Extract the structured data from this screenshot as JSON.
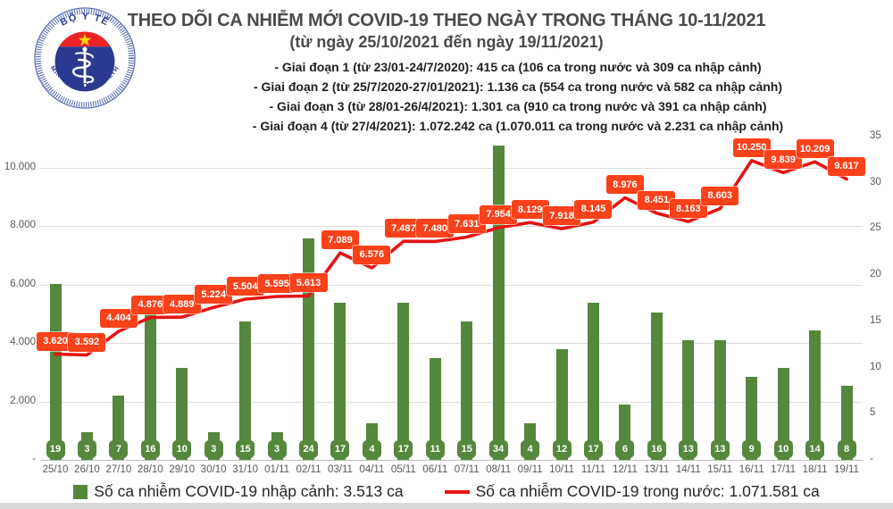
{
  "logo": {
    "top_text": "BỘ Y TẾ",
    "bottom_text": "MINISTRY OF HEALTH"
  },
  "header": {
    "title": "THEO DÕI CA NHIỄM MỚI COVID-19 THEO NGÀY TRONG THÁNG 10-11/2021",
    "subtitle": "(từ ngày 25/10/2021 đến ngày 19/11/2021)",
    "phases": [
      "- Giai đoạn 1 (từ 23/01-24/7/2020): 415 ca (106 ca trong nước và 309 ca nhập cảnh)",
      "- Giai đoạn 2 (từ 25/7/2020-27/01/2021): 1.136 ca (554 ca trong nước và 582 ca nhập cảnh)",
      "- Giai đoạn 3 (từ 28/01-26/4/2021): 1.301 ca (910 ca trong nước và 391 ca nhập cảnh)",
      "- Giai đoạn 4 (từ 27/4/2021): 1.072.242 ca (1.070.011 ca trong nước và 2.231 ca nhập cảnh)"
    ]
  },
  "legend": {
    "imported_label": "Số ca nhiễm COVID-19 nhập cảnh: 3.513 ca",
    "domestic_label": "Số ca nhiễm COVID-19 trong nước: 1.071.581 ca"
  },
  "colors": {
    "bar_green": "#55873C",
    "line_red": "#E51313",
    "label_box_orange": "#F9411A",
    "logo_blue": "#2B3990",
    "logo_red": "#EC2227",
    "star_yellow": "#FFD500",
    "grid_grey": "#DCDCDC",
    "axis_text_grey": "#595959"
  },
  "chart_data": {
    "type": "bar",
    "categories": [
      "25/10",
      "26/10",
      "27/10",
      "28/10",
      "29/10",
      "30/10",
      "31/10",
      "01/11",
      "02/11",
      "03/11",
      "04/11",
      "05/11",
      "06/11",
      "07/11",
      "08/11",
      "09/11",
      "10/11",
      "11/11",
      "12/11",
      "13/11",
      "14/11",
      "15/11",
      "16/11",
      "17/11",
      "18/11",
      "19/11"
    ],
    "series": [
      {
        "name": "Số ca nhiễm COVID-19 nhập cảnh",
        "type": "bar",
        "axis": "right",
        "color": "#55873C",
        "values": [
          19,
          3,
          7,
          16,
          10,
          3,
          15,
          3,
          24,
          17,
          4,
          17,
          11,
          15,
          34,
          4,
          12,
          17,
          6,
          16,
          13,
          13,
          9,
          10,
          14,
          8
        ]
      },
      {
        "name": "Số ca nhiễm COVID-19 trong nước",
        "type": "line",
        "axis": "left",
        "color": "#E51313",
        "label_bg": "#F9411A",
        "values": [
          3620,
          3592,
          4404,
          4876,
          4889,
          5224,
          5504,
          5595,
          5613,
          7089,
          6576,
          7487,
          7480,
          7631,
          7954,
          8129,
          7918,
          8145,
          8976,
          8451,
          8163,
          8603,
          10250,
          9839,
          10209,
          9617
        ]
      }
    ],
    "title": "THEO DÕI CA NHIỄM MỚI COVID-19 THEO NGÀY TRONG THÁNG 10-11/2021",
    "left_axis": {
      "label_format": "thousands-dot",
      "ticks": [
        10000,
        8000,
        6000,
        4000,
        2000,
        0
      ],
      "max": 11470
    },
    "right_axis": {
      "ticks": [
        35,
        30,
        25,
        20,
        15,
        10,
        5,
        0
      ],
      "max": 35
    },
    "zero_tick_label": "-",
    "grid": true,
    "legend_position": "bottom"
  }
}
